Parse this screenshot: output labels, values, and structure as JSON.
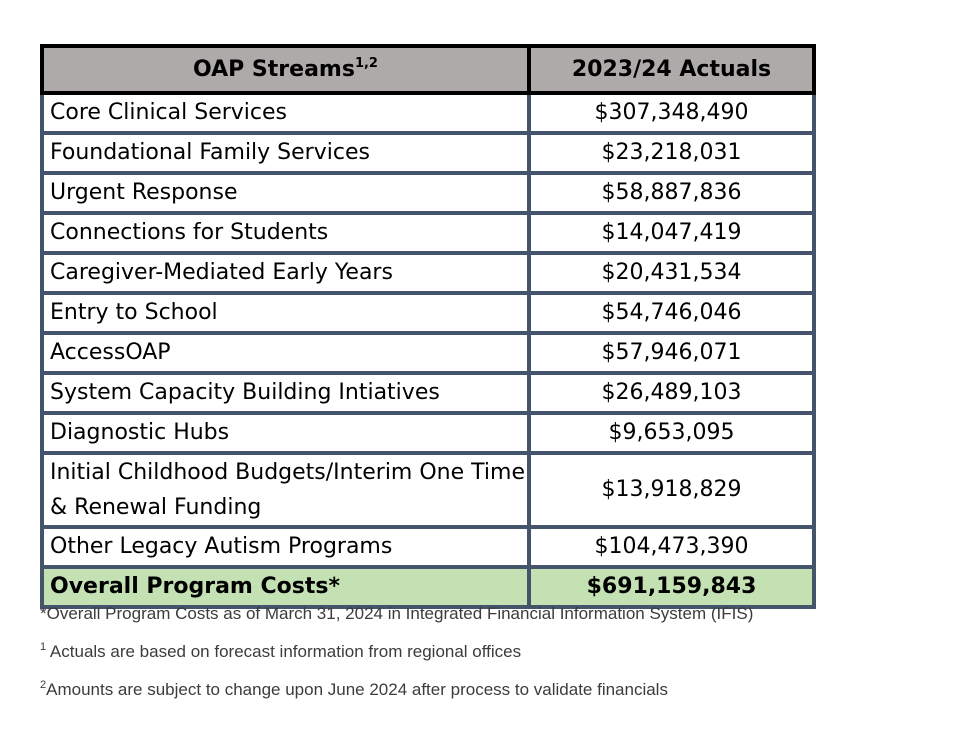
{
  "table": {
    "header": {
      "col1": "OAP Streams",
      "col1_sup": "1,2",
      "col2": "2023/24 Actuals"
    },
    "rows": [
      {
        "label": "Core Clinical Services",
        "value": "$307,348,490"
      },
      {
        "label": "Foundational Family Services",
        "value": "$23,218,031"
      },
      {
        "label": "Urgent Response",
        "value": "$58,887,836"
      },
      {
        "label": "Connections for Students",
        "value": "$14,047,419"
      },
      {
        "label": "Caregiver-Mediated Early Years",
        "value": "$20,431,534"
      },
      {
        "label": "Entry to School",
        "value": "$54,746,046"
      },
      {
        "label": "AccessOAP",
        "value": "$57,946,071"
      },
      {
        "label": "System Capacity Building Intiatives",
        "value": "$26,489,103"
      },
      {
        "label": "Diagnostic Hubs",
        "value": "$9,653,095"
      },
      {
        "label": "Initial Childhood Budgets/Interim One Time & Renewal Funding",
        "value": "$13,918,829"
      },
      {
        "label": "Other Legacy Autism Programs",
        "value": "$104,473,390"
      }
    ],
    "total": {
      "label": "Overall Program Costs*",
      "value": "$691,159,843"
    }
  },
  "notes": {
    "asterisk": "*Overall Program Costs as of March 31, 2024 in Integrated Financial Information System (IFIS)",
    "note1_mark": "1",
    "note1": "Actuals are based on forecast information from regional offices",
    "note2_mark": "2",
    "note2": "Amounts are subject to change upon June 2024 after process to validate financials"
  },
  "colors": {
    "header_bg": "#adaaa9",
    "total_bg": "#c3e1b3",
    "grid_border": "#44546a"
  }
}
